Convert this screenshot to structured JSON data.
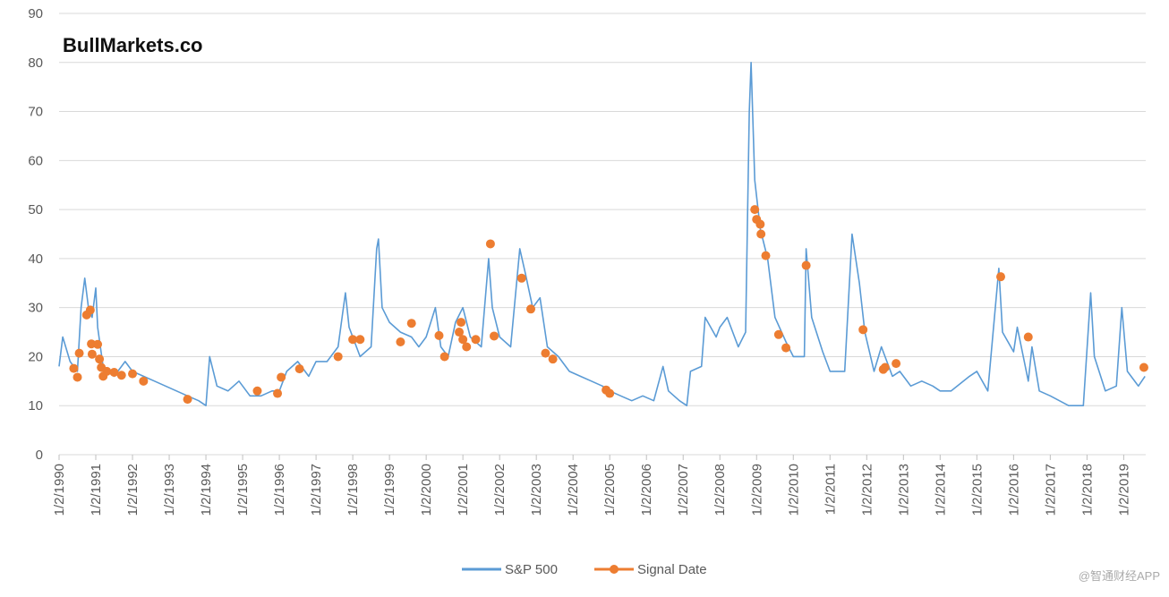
{
  "chart_data": {
    "type": "line",
    "annotation": "BullMarkets.co",
    "watermark": "@智通财经APP",
    "xlim": [
      1990,
      2019.6
    ],
    "ylim": [
      0,
      90
    ],
    "yticks": [
      0,
      10,
      20,
      30,
      40,
      50,
      60,
      70,
      80,
      90
    ],
    "xticks": [
      {
        "value": 1990,
        "label": "1/2/1990"
      },
      {
        "value": 1991,
        "label": "1/2/1991"
      },
      {
        "value": 1992,
        "label": "1/2/1992"
      },
      {
        "value": 1993,
        "label": "1/2/1993"
      },
      {
        "value": 1994,
        "label": "1/2/1994"
      },
      {
        "value": 1995,
        "label": "1/2/1995"
      },
      {
        "value": 1996,
        "label": "1/2/1996"
      },
      {
        "value": 1997,
        "label": "1/2/1997"
      },
      {
        "value": 1998,
        "label": "1/2/1998"
      },
      {
        "value": 1999,
        "label": "1/2/1999"
      },
      {
        "value": 2000,
        "label": "1/2/2000"
      },
      {
        "value": 2001,
        "label": "1/2/2001"
      },
      {
        "value": 2002,
        "label": "1/2/2002"
      },
      {
        "value": 2003,
        "label": "1/2/2003"
      },
      {
        "value": 2004,
        "label": "1/2/2004"
      },
      {
        "value": 2005,
        "label": "1/2/2005"
      },
      {
        "value": 2006,
        "label": "1/2/2006"
      },
      {
        "value": 2007,
        "label": "1/2/2007"
      },
      {
        "value": 2008,
        "label": "1/2/2008"
      },
      {
        "value": 2009,
        "label": "1/2/2009"
      },
      {
        "value": 2010,
        "label": "1/2/2010"
      },
      {
        "value": 2011,
        "label": "1/2/2011"
      },
      {
        "value": 2012,
        "label": "1/2/2012"
      },
      {
        "value": 2013,
        "label": "1/2/2013"
      },
      {
        "value": 2014,
        "label": "1/2/2014"
      },
      {
        "value": 2015,
        "label": "1/2/2015"
      },
      {
        "value": 2016,
        "label": "1/2/2016"
      },
      {
        "value": 2017,
        "label": "1/2/2017"
      },
      {
        "value": 2018,
        "label": "1/2/2018"
      },
      {
        "value": 2019,
        "label": "1/2/2019"
      }
    ],
    "grid": true,
    "legend": "bottom",
    "series": [
      {
        "name": "S&P 500",
        "color": "#5b9bd5",
        "mode": "line",
        "x": [
          1990.0,
          1990.1,
          1990.3,
          1990.5,
          1990.6,
          1990.7,
          1990.8,
          1990.9,
          1991.0,
          1991.05,
          1991.2,
          1991.5,
          1991.8,
          1992.0,
          1992.3,
          1992.6,
          1992.9,
          1993.2,
          1993.5,
          1993.8,
          1994.0,
          1994.1,
          1994.3,
          1994.6,
          1994.9,
          1995.2,
          1995.5,
          1995.8,
          1996.0,
          1996.2,
          1996.5,
          1996.8,
          1997.0,
          1997.3,
          1997.6,
          1997.8,
          1997.9,
          1998.2,
          1998.5,
          1998.65,
          1998.7,
          1998.8,
          1999.0,
          1999.3,
          1999.6,
          1999.8,
          2000.0,
          2000.25,
          2000.4,
          2000.6,
          2000.8,
          2001.0,
          2001.2,
          2001.5,
          2001.7,
          2001.8,
          2002.0,
          2002.3,
          2002.55,
          2002.7,
          2002.9,
          2003.1,
          2003.3,
          2003.6,
          2003.9,
          2004.2,
          2004.5,
          2004.8,
          2005.0,
          2005.3,
          2005.6,
          2005.9,
          2006.2,
          2006.45,
          2006.6,
          2006.9,
          2007.1,
          2007.2,
          2007.5,
          2007.6,
          2007.9,
          2008.0,
          2008.2,
          2008.5,
          2008.7,
          2008.8,
          2008.85,
          2008.95,
          2009.1,
          2009.3,
          2009.5,
          2009.8,
          2010.0,
          2010.3,
          2010.35,
          2010.5,
          2010.8,
          2011.0,
          2011.4,
          2011.6,
          2011.8,
          2011.95,
          2012.2,
          2012.4,
          2012.7,
          2012.9,
          2013.2,
          2013.5,
          2013.8,
          2014.0,
          2014.3,
          2014.8,
          2015.0,
          2015.3,
          2015.6,
          2015.7,
          2016.0,
          2016.1,
          2016.4,
          2016.5,
          2016.7,
          2017.0,
          2017.5,
          2017.9,
          2018.1,
          2018.2,
          2018.5,
          2018.8,
          2018.95,
          2019.1,
          2019.4,
          2019.58
        ],
        "values": [
          18,
          24,
          19,
          17,
          30,
          36,
          30,
          28,
          34,
          26,
          18,
          16,
          19,
          17,
          16,
          15,
          14,
          13,
          12,
          11,
          10,
          20,
          14,
          13,
          15,
          12,
          12,
          13,
          13,
          17,
          19,
          16,
          19,
          19,
          22,
          33,
          26,
          20,
          22,
          42,
          44,
          30,
          27,
          25,
          24,
          22,
          24,
          30,
          22,
          20,
          27,
          30,
          24,
          22,
          40,
          30,
          24,
          22,
          42,
          37,
          30,
          32,
          22,
          20,
          17,
          16,
          15,
          14,
          13,
          12,
          11,
          12,
          11,
          18,
          13,
          11,
          10,
          17,
          18,
          28,
          24,
          26,
          28,
          22,
          25,
          70,
          80,
          56,
          46,
          40,
          28,
          23,
          20,
          20,
          42,
          28,
          21,
          17,
          17,
          45,
          35,
          25,
          17,
          22,
          16,
          17,
          14,
          15,
          14,
          13,
          13,
          16,
          17,
          13,
          38,
          25,
          21,
          26,
          15,
          22,
          13,
          12,
          10,
          10,
          33,
          20,
          13,
          14,
          30,
          17,
          14,
          16
        ]
      },
      {
        "name": "Signal Date",
        "color": "#ed7d31",
        "mode": "markers",
        "x": [
          1990.4,
          1990.5,
          1990.55,
          1990.75,
          1990.85,
          1990.88,
          1990.9,
          1991.05,
          1991.1,
          1991.15,
          1991.2,
          1991.3,
          1991.5,
          1991.7,
          1992.0,
          1992.3,
          1993.5,
          1995.4,
          1995.95,
          1996.05,
          1996.55,
          1997.6,
          1998.0,
          1998.2,
          1999.3,
          1999.6,
          2000.35,
          2000.5,
          2000.9,
          2000.95,
          2001.0,
          2001.1,
          2001.35,
          2001.75,
          2001.85,
          2002.6,
          2002.85,
          2003.25,
          2003.45,
          2004.9,
          2005.0,
          2008.95,
          2009.0,
          2009.1,
          2009.12,
          2009.25,
          2009.6,
          2009.8,
          2010.35,
          2011.9,
          2012.45,
          2012.5,
          2012.8,
          2015.65,
          2016.4,
          2019.55
        ],
        "values": [
          17.6,
          15.8,
          20.7,
          28.5,
          29.5,
          22.6,
          20.5,
          22.5,
          19.5,
          17.8,
          16,
          17,
          16.8,
          16.2,
          16.5,
          15,
          11.3,
          13,
          12.5,
          15.8,
          17.5,
          20,
          23.5,
          23.5,
          23,
          26.8,
          24.3,
          20,
          25,
          27,
          23.5,
          22,
          23.5,
          43,
          24.2,
          36,
          29.7,
          20.7,
          19.5,
          13.2,
          12.5,
          50,
          48,
          47,
          45,
          40.6,
          24.5,
          21.8,
          38.6,
          25.5,
          17.4,
          17.8,
          18.6,
          36.3,
          24,
          17.8
        ]
      }
    ]
  }
}
